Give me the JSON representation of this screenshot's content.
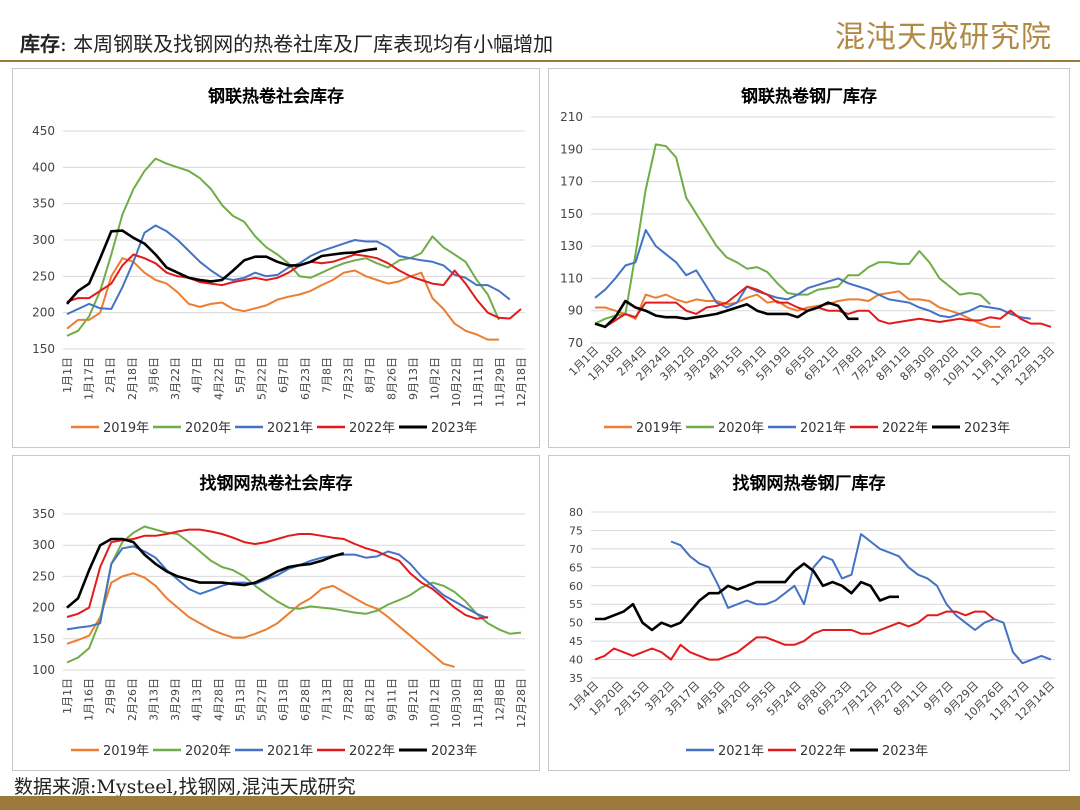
{
  "header": {
    "label": "库存",
    "sep": ":",
    "text": "本周钢联及找钢网的热卷社库及厂库表现均有小幅增加",
    "logo": "混沌天成研究院"
  },
  "footer": {
    "source": "数据来源:Mysteel,找钢网,混沌天成研究"
  },
  "colors": {
    "2019": "#ED7D31",
    "2020": "#70AD47",
    "2021": "#4472C4",
    "2022": "#E31A1C",
    "2023": "#000000"
  },
  "chart_data": [
    {
      "type": "line",
      "title": "钢联热卷社会库存",
      "ylim": [
        150,
        450
      ],
      "yticks": [
        150,
        200,
        250,
        300,
        350,
        400,
        450
      ],
      "x_ticks": [
        "1月1日",
        "1月17日",
        "2月1日",
        "2月18日",
        "3月6日",
        "3月22日",
        "4月7日",
        "4月22日",
        "5月7日",
        "5月22日",
        "6月7日",
        "6月23日",
        "7月8日",
        "7月23日",
        "8月7日",
        "8月26日",
        "9月13日",
        "10月2日",
        "10月22日",
        "11月11日",
        "11月29日",
        "12月18日"
      ],
      "legend": [
        "2019年",
        "2020年",
        "2021年",
        "2022年",
        "2023年"
      ],
      "series": [
        {
          "name": "2019年",
          "values": [
            178,
            190,
            190,
            200,
            250,
            275,
            270,
            255,
            245,
            240,
            228,
            212,
            208,
            212,
            214,
            205,
            202,
            206,
            210,
            218,
            222,
            225,
            230,
            238,
            245,
            255,
            258,
            250,
            245,
            240,
            243,
            250,
            255,
            220,
            205,
            185,
            175,
            170,
            163,
            163
          ]
        },
        {
          "name": "2020年",
          "values": [
            168,
            175,
            195,
            230,
            280,
            335,
            370,
            395,
            412,
            405,
            400,
            395,
            385,
            370,
            348,
            333,
            325,
            305,
            290,
            280,
            268,
            250,
            248,
            255,
            262,
            268,
            272,
            275,
            268,
            262,
            272,
            275,
            282,
            305,
            290,
            280,
            270,
            245,
            225,
            190
          ]
        },
        {
          "name": "2021年",
          "values": [
            198,
            205,
            212,
            206,
            205,
            235,
            270,
            310,
            320,
            312,
            300,
            285,
            270,
            258,
            248,
            245,
            248,
            255,
            250,
            252,
            262,
            268,
            278,
            285,
            290,
            295,
            300,
            298,
            298,
            290,
            278,
            275,
            272,
            270,
            265,
            252,
            248,
            238,
            238,
            230,
            218
          ]
        },
        {
          "name": "2022年",
          "values": [
            215,
            220,
            220,
            230,
            240,
            265,
            280,
            275,
            268,
            255,
            250,
            248,
            242,
            240,
            238,
            242,
            245,
            248,
            245,
            248,
            255,
            265,
            270,
            268,
            270,
            275,
            280,
            278,
            275,
            268,
            258,
            250,
            245,
            240,
            238,
            258,
            240,
            218,
            200,
            193,
            192,
            205
          ]
        },
        {
          "name": "2023年",
          "values": [
            212,
            230,
            240,
            275,
            312,
            313,
            303,
            295,
            280,
            262,
            255,
            248,
            245,
            243,
            245,
            258,
            272,
            277,
            277,
            270,
            265,
            265,
            270,
            278,
            280,
            282,
            283,
            286,
            288
          ]
        }
      ]
    },
    {
      "type": "line",
      "title": "钢联热卷钢厂库存",
      "ylim": [
        70,
        210
      ],
      "yticks": [
        70,
        90,
        110,
        130,
        150,
        170,
        190,
        210
      ],
      "x_ticks": [
        "1月1日",
        "1月18日",
        "2月4日",
        "2月24日",
        "3月12日",
        "3月29日",
        "4月15日",
        "5月1日",
        "5月19日",
        "6月5日",
        "6月21日",
        "7月8日",
        "7月24日",
        "8月11日",
        "8月30日",
        "9月20日",
        "10月11日",
        "11月1日",
        "11月22日",
        "12月13日"
      ],
      "legend": [
        "2019年",
        "2020年",
        "2021年",
        "2022年",
        "2023年"
      ],
      "series": [
        {
          "name": "2019年",
          "values": [
            92,
            92,
            90,
            88,
            85,
            100,
            98,
            100,
            97,
            95,
            97,
            96,
            96,
            94,
            95,
            98,
            100,
            95,
            96,
            92,
            90,
            92,
            93,
            94,
            96,
            97,
            97,
            96,
            100,
            101,
            102,
            97,
            97,
            96,
            92,
            90,
            88,
            85,
            82,
            80,
            80
          ]
        },
        {
          "name": "2020年",
          "values": [
            82,
            85,
            87,
            88,
            125,
            165,
            193,
            192,
            185,
            160,
            150,
            140,
            130,
            123,
            120,
            116,
            117,
            114,
            107,
            101,
            100,
            100,
            103,
            104,
            105,
            112,
            112,
            117,
            120,
            120,
            119,
            119,
            127,
            120,
            110,
            105,
            100,
            101,
            100,
            94
          ]
        },
        {
          "name": "2021年",
          "values": [
            98,
            103,
            110,
            118,
            120,
            140,
            130,
            125,
            120,
            112,
            115,
            105,
            95,
            92,
            95,
            105,
            102,
            100,
            98,
            97,
            100,
            104,
            106,
            108,
            110,
            107,
            105,
            103,
            100,
            97,
            96,
            95,
            92,
            90,
            87,
            86,
            88,
            90,
            93,
            92,
            91,
            88,
            86,
            85
          ]
        },
        {
          "name": "2022年",
          "values": [
            82,
            80,
            84,
            88,
            86,
            95,
            95,
            95,
            95,
            90,
            88,
            92,
            93,
            95,
            100,
            105,
            103,
            100,
            95,
            95,
            92,
            90,
            92,
            90,
            90,
            88,
            90,
            90,
            84,
            82,
            83,
            84,
            85,
            84,
            83,
            84,
            85,
            84,
            84,
            86,
            85,
            90,
            85,
            82,
            82,
            80
          ]
        },
        {
          "name": "2023年",
          "values": [
            82,
            80,
            86,
            96,
            92,
            90,
            87,
            86,
            86,
            85,
            86,
            87,
            88,
            90,
            92,
            94,
            90,
            88,
            88,
            88,
            86,
            90,
            92,
            95,
            93,
            85,
            85
          ]
        }
      ]
    },
    {
      "type": "line",
      "title": "找钢网热卷社会库存",
      "ylim": [
        100,
        350
      ],
      "yticks": [
        100,
        150,
        200,
        250,
        300,
        350
      ],
      "x_ticks": [
        "1月1日",
        "1月16日",
        "2月9日",
        "2月26日",
        "3月13日",
        "3月29日",
        "4月13日",
        "4月28日",
        "5月13日",
        "5月27日",
        "6月13日",
        "6月28日",
        "7月13日",
        "7月28日",
        "8月12日",
        "9月11日",
        "9月21日",
        "10月12日",
        "10月30日",
        "11月18日",
        "12月8日",
        "12月28日"
      ],
      "legend": [
        "2019年",
        "2020年",
        "2021年",
        "2022年",
        "2023年"
      ],
      "series": [
        {
          "name": "2019年",
          "values": [
            142,
            148,
            155,
            185,
            240,
            250,
            255,
            248,
            235,
            215,
            200,
            185,
            175,
            165,
            158,
            152,
            152,
            158,
            165,
            175,
            190,
            205,
            215,
            230,
            235,
            225,
            215,
            205,
            198,
            185,
            170,
            155,
            140,
            125,
            110,
            105
          ]
        },
        {
          "name": "2020年",
          "values": [
            112,
            120,
            135,
            180,
            270,
            305,
            320,
            330,
            325,
            320,
            318,
            305,
            290,
            275,
            265,
            260,
            250,
            235,
            222,
            210,
            200,
            198,
            202,
            200,
            198,
            195,
            192,
            190,
            195,
            205,
            212,
            220,
            232,
            240,
            235,
            225,
            210,
            190,
            175,
            165,
            158,
            160
          ]
        },
        {
          "name": "2021年",
          "values": [
            165,
            168,
            170,
            175,
            270,
            295,
            298,
            290,
            280,
            260,
            245,
            230,
            222,
            228,
            235,
            240,
            240,
            238,
            245,
            252,
            262,
            268,
            275,
            280,
            283,
            285,
            285,
            280,
            282,
            290,
            285,
            270,
            250,
            235,
            220,
            210,
            200,
            190,
            183
          ]
        },
        {
          "name": "2022年",
          "values": [
            185,
            190,
            200,
            265,
            305,
            308,
            310,
            315,
            315,
            318,
            322,
            325,
            325,
            322,
            318,
            312,
            305,
            302,
            305,
            310,
            315,
            318,
            318,
            315,
            312,
            310,
            302,
            295,
            290,
            282,
            275,
            255,
            240,
            230,
            215,
            200,
            188,
            182,
            185
          ]
        },
        {
          "name": "2023年",
          "values": [
            200,
            215,
            260,
            300,
            310,
            310,
            305,
            285,
            270,
            258,
            250,
            245,
            240,
            240,
            240,
            238,
            236,
            240,
            248,
            258,
            265,
            268,
            270,
            275,
            282,
            287
          ]
        }
      ]
    },
    {
      "type": "line",
      "title": "找钢网热卷钢厂库存",
      "ylim": [
        35,
        80
      ],
      "yticks": [
        35,
        40,
        45,
        50,
        55,
        60,
        65,
        70,
        75,
        80
      ],
      "x_ticks": [
        "1月4日",
        "1月20日",
        "2月15日",
        "3月2日",
        "3月17日",
        "4月5日",
        "4月20日",
        "5月5日",
        "5月24日",
        "6月8日",
        "6月23日",
        "7月12日",
        "7月27日",
        "8月11日",
        "9月7日",
        "9月29日",
        "10月26日",
        "11月17日",
        "12月14日"
      ],
      "legend": [
        "2021年",
        "2022年",
        "2023年"
      ],
      "series": [
        {
          "name": "2021年",
          "start": 8,
          "values": [
            72,
            71,
            68,
            66,
            65,
            60,
            54,
            55,
            56,
            55,
            55,
            56,
            58,
            60,
            55,
            65,
            68,
            67,
            62,
            63,
            74,
            72,
            70,
            69,
            68,
            65,
            63,
            62,
            60,
            55,
            52,
            50,
            48,
            50,
            51,
            50,
            42,
            39,
            40,
            41,
            40
          ]
        },
        {
          "name": "2022年",
          "values": [
            40,
            41,
            43,
            42,
            41,
            42,
            43,
            42,
            40,
            44,
            42,
            41,
            40,
            40,
            41,
            42,
            44,
            46,
            46,
            45,
            44,
            44,
            45,
            47,
            48,
            48,
            48,
            48,
            47,
            47,
            48,
            49,
            50,
            49,
            50,
            52,
            52,
            53,
            53,
            52,
            53,
            53,
            51
          ]
        },
        {
          "name": "2023年",
          "values": [
            51,
            51,
            52,
            53,
            55,
            50,
            48,
            50,
            49,
            50,
            53,
            56,
            58,
            58,
            60,
            59,
            60,
            61,
            61,
            61,
            61,
            64,
            66,
            64,
            60,
            61,
            60,
            58,
            61,
            60,
            56,
            57,
            57
          ]
        }
      ]
    }
  ]
}
